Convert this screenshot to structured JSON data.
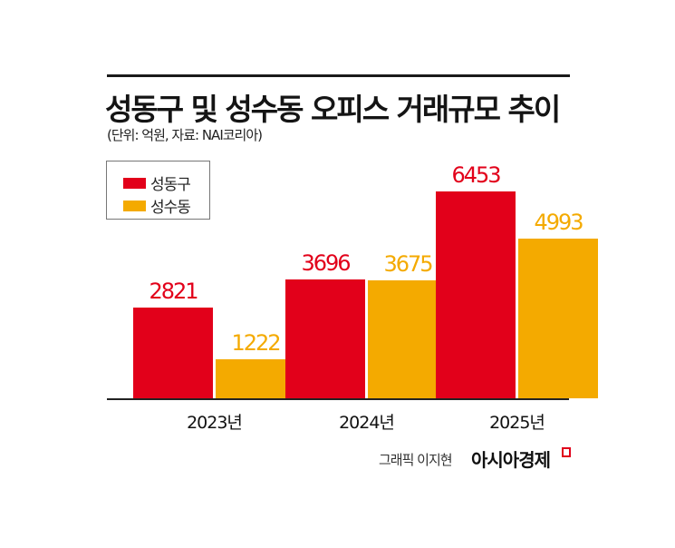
{
  "header": {
    "title": "성동구 및 성수동 오피스 거래규모 추이",
    "subtitle": "(단위: 억원, 자료: NAI코리아)"
  },
  "legend": {
    "items": [
      {
        "label": "성동구",
        "color": "#e2001a"
      },
      {
        "label": "성수동",
        "color": "#f4aa00"
      }
    ]
  },
  "chart_data": {
    "type": "bar",
    "title": "성동구 및 성수동 오피스 거래규모 추이",
    "subtitle": "(단위: 억원, 자료: NAI코리아)",
    "xlabel": "",
    "ylabel": "억원",
    "categories": [
      "2023년",
      "2024년",
      "2025년"
    ],
    "series": [
      {
        "name": "성동구",
        "color": "#e2001a",
        "values": [
          2821,
          3696,
          6453
        ]
      },
      {
        "name": "성수동",
        "color": "#f4aa00",
        "values": [
          1222,
          3675,
          4993
        ]
      }
    ],
    "value_labels": {
      "성동구": [
        "2821",
        "3696",
        "6453"
      ],
      "성수동": [
        "1222",
        "3675",
        "4993"
      ]
    },
    "ylim": [
      0,
      7500
    ],
    "grid": false,
    "y_axis_visible": false,
    "legend_position": "top-left"
  },
  "footer": {
    "credit": "그래픽 이지현",
    "brand": "아시아경제"
  }
}
